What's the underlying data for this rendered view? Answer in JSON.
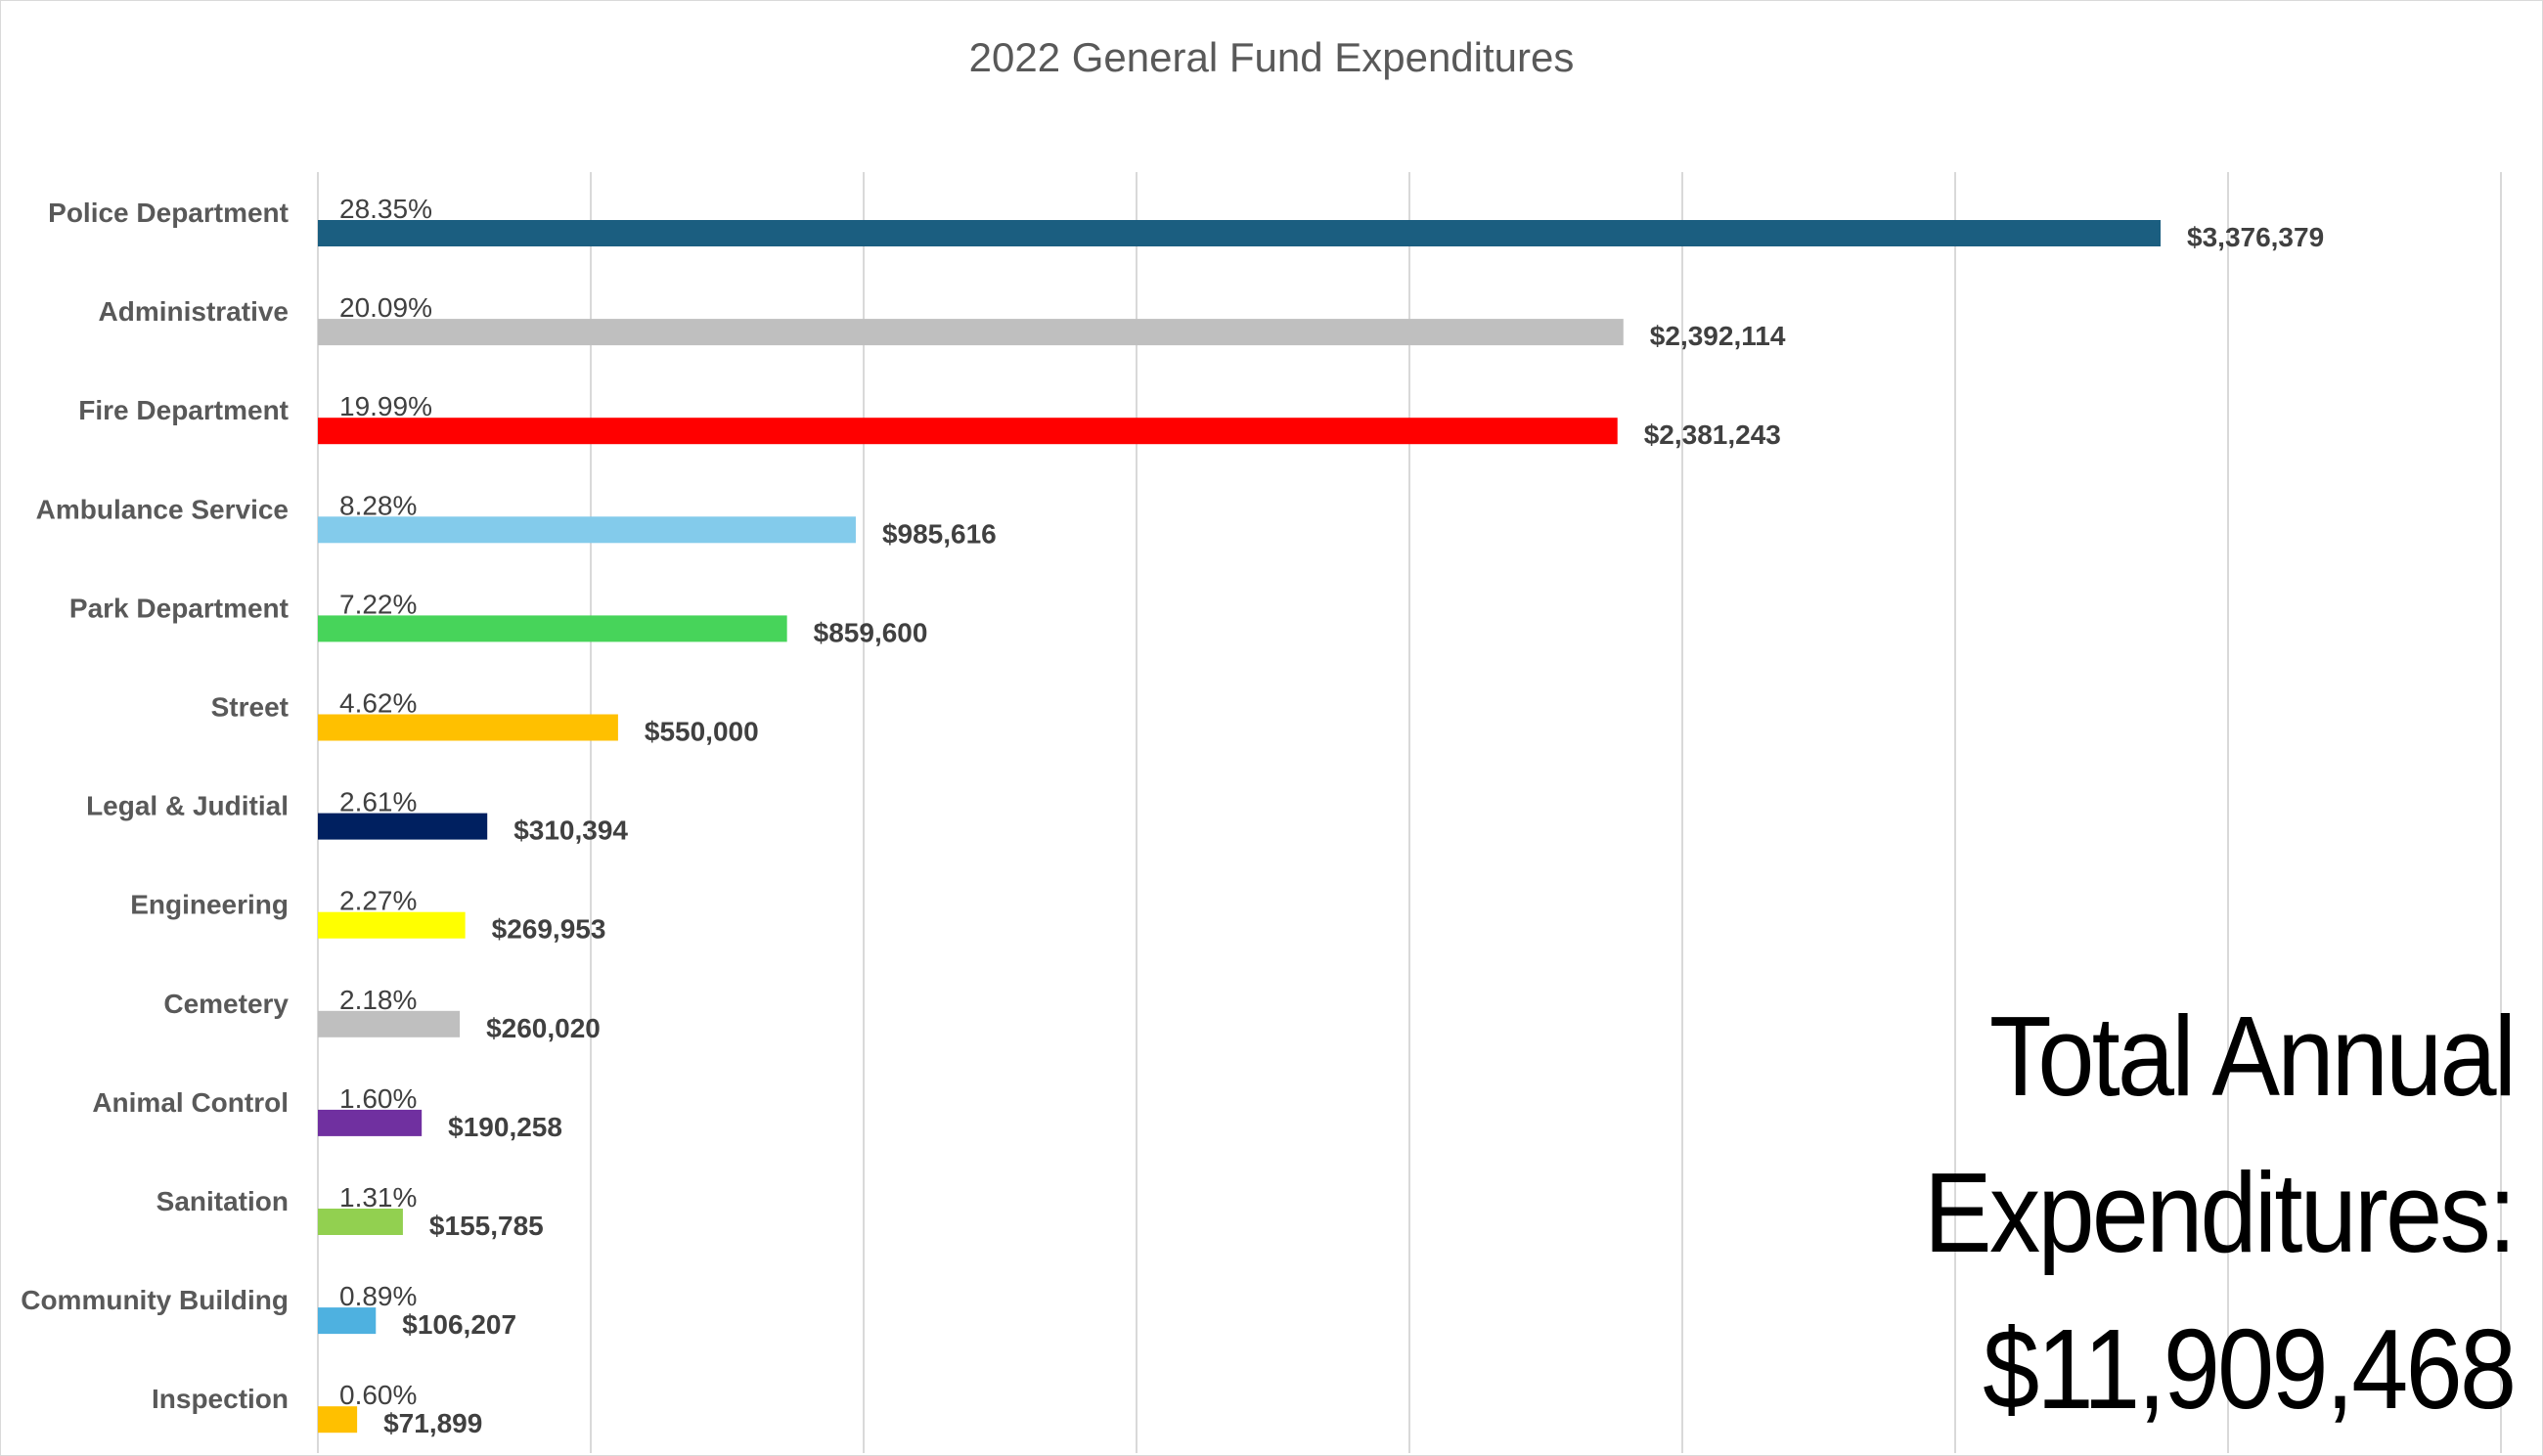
{
  "chart_data": {
    "type": "bar",
    "orientation": "horizontal",
    "title": "2022 General Fund Expenditures",
    "xlabel": "",
    "ylabel": "",
    "xlim": [
      0,
      4000000
    ],
    "x_gridline_step": 500000,
    "grid": true,
    "legend": "none",
    "categories": [
      "Police Department",
      "Administrative",
      "Fire Department",
      "Ambulance Service",
      "Park Department",
      "Street",
      "Legal & Juditial",
      "Engineering",
      "Cemetery",
      "Animal Control",
      "Sanitation",
      "Community Building",
      "Inspection"
    ],
    "values": [
      3376379,
      2392114,
      2381243,
      985616,
      859600,
      550000,
      310394,
      269953,
      260020,
      190258,
      155785,
      106207,
      71899
    ],
    "value_labels": [
      "$3,376,379",
      "$2,392,114",
      "$2,381,243",
      "$985,616",
      "$859,600",
      "$550,000",
      "$310,394",
      "$269,953",
      "$260,020",
      "$190,258",
      "$155,785",
      "$106,207",
      "$71,899"
    ],
    "percent_labels": [
      "28.35%",
      "20.09%",
      "19.99%",
      "8.28%",
      "7.22%",
      "4.62%",
      "2.61%",
      "2.27%",
      "2.18%",
      "1.60%",
      "1.31%",
      "0.89%",
      "0.60%"
    ],
    "colors": [
      "#1b5e80",
      "#bfbfbf",
      "#ff0000",
      "#83cbeb",
      "#47d45a",
      "#ffc000",
      "#002060",
      "#ffff00",
      "#bfbfbf",
      "#7030a0",
      "#92d050",
      "#4eb1e0",
      "#ffc000"
    ]
  },
  "annotation": {
    "line1": "Total Annual",
    "line2": "Expenditures:",
    "line3": "$11,909,468"
  }
}
